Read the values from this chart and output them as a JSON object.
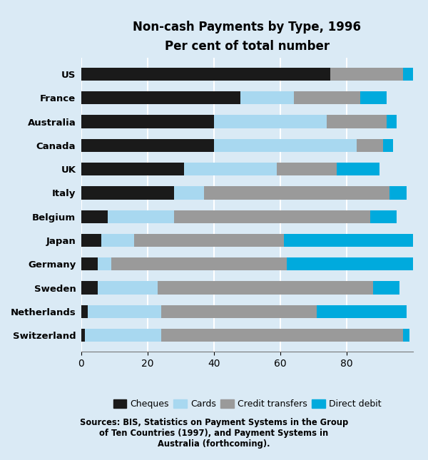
{
  "title": "Non-cash Payments by Type, 1996",
  "subtitle": "Per cent of total number",
  "source_text": "Sources: BIS, Statistics on Payment Systems in the Group\nof Ten Countries (1997), and Payment Systems in\nAustralia (forthcoming).",
  "countries": [
    "US",
    "France",
    "Australia",
    "Canada",
    "UK",
    "Italy",
    "Belgium",
    "Japan",
    "Germany",
    "Sweden",
    "Netherlands",
    "Switzerland"
  ],
  "cheques": [
    75,
    48,
    40,
    40,
    31,
    28,
    8,
    6,
    5,
    5,
    2,
    1
  ],
  "cards": [
    0,
    16,
    34,
    43,
    28,
    9,
    20,
    10,
    4,
    18,
    22,
    23
  ],
  "credit_transfers": [
    22,
    20,
    18,
    8,
    18,
    56,
    59,
    45,
    53,
    65,
    47,
    73
  ],
  "direct_debit": [
    3,
    8,
    3,
    3,
    13,
    5,
    8,
    39,
    38,
    8,
    27,
    2
  ],
  "colors": {
    "cheques": "#1a1a1a",
    "cards": "#a8d8f0",
    "credit_transfers": "#9a9a9a",
    "direct_debit": "#00aadd"
  },
  "background_color": "#daeaf5",
  "xlim_max": 100,
  "xticks": [
    0,
    20,
    40,
    60,
    80
  ],
  "bar_height": 0.55,
  "grid_color": "#ffffff",
  "figsize": [
    6.0,
    6.45
  ],
  "dpi": 100
}
